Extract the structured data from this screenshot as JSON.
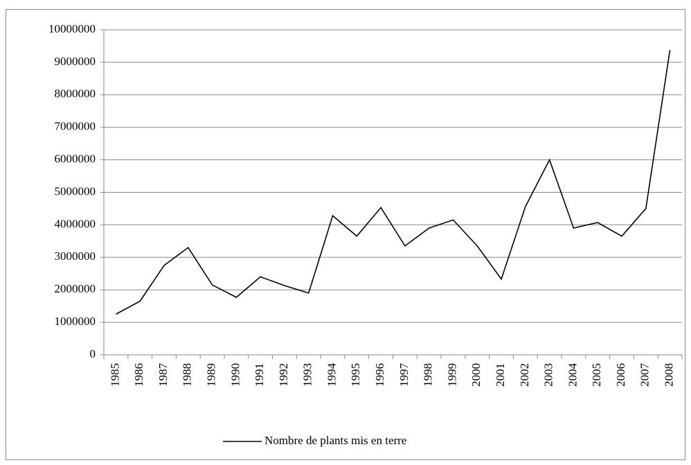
{
  "chart_data": {
    "type": "line",
    "categories": [
      "1985",
      "1986",
      "1987",
      "1988",
      "1989",
      "1990",
      "1991",
      "1992",
      "1993",
      "1994",
      "1995",
      "1996",
      "1997",
      "1998",
      "1999",
      "2000",
      "2001",
      "2002",
      "2003",
      "2004",
      "2005",
      "2006",
      "2007",
      "2008"
    ],
    "series": [
      {
        "name": "Nombre de plants mis en terre",
        "color": "#000000",
        "values": [
          1250000,
          1650000,
          2750000,
          3300000,
          2150000,
          1770000,
          2400000,
          2130000,
          1900000,
          4280000,
          3650000,
          4530000,
          3350000,
          3900000,
          4150000,
          3350000,
          2330000,
          4560000,
          6000000,
          3900000,
          4070000,
          3650000,
          4500000,
          9380000
        ]
      }
    ],
    "ylim": [
      0,
      10000000
    ],
    "yticks": [
      0,
      1000000,
      2000000,
      3000000,
      4000000,
      5000000,
      6000000,
      7000000,
      8000000,
      9000000,
      10000000
    ],
    "grid": true,
    "legend": "bottom"
  }
}
